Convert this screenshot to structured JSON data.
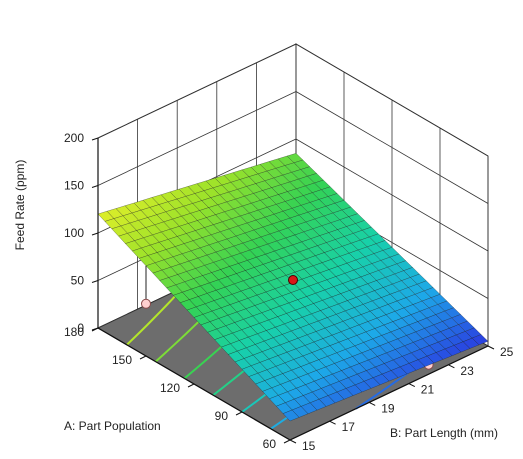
{
  "chart_data": {
    "type": "surface",
    "title": "",
    "zlabel": "Feed Rate (ppm)",
    "xlabel": "A: Part Population",
    "ylabel": "B: Part Length (mm)",
    "x_ticks": [
      60,
      90,
      120,
      150,
      180
    ],
    "y_ticks": [
      15,
      17,
      19,
      21,
      23,
      25
    ],
    "z_ticks": [
      0,
      50,
      100,
      150,
      200
    ],
    "xlim": [
      60,
      180
    ],
    "ylim": [
      15,
      25
    ],
    "zlim": [
      0,
      200
    ],
    "colormap": [
      "#2b3be0",
      "#1da9e8",
      "#18d1a8",
      "#34d254",
      "#9be22a",
      "#e1ee2a"
    ],
    "surface_corners": [
      {
        "A": 180,
        "B": 15,
        "feed_rate": 120
      },
      {
        "A": 180,
        "B": 25,
        "feed_rate": 85
      },
      {
        "A": 60,
        "B": 15,
        "feed_rate": 20
      },
      {
        "A": 60,
        "B": 25,
        "feed_rate": 5
      }
    ],
    "design_points": [
      {
        "A": 120,
        "B": 20,
        "feed_rate": 60,
        "position": "above surface"
      },
      {
        "A": 150,
        "B": 15,
        "feed_rate": 55,
        "position": "below surface"
      },
      {
        "A": 60,
        "B": 22,
        "feed_rate": 10,
        "position": "below surface"
      }
    ],
    "floor_color": "#6d6d6d"
  }
}
